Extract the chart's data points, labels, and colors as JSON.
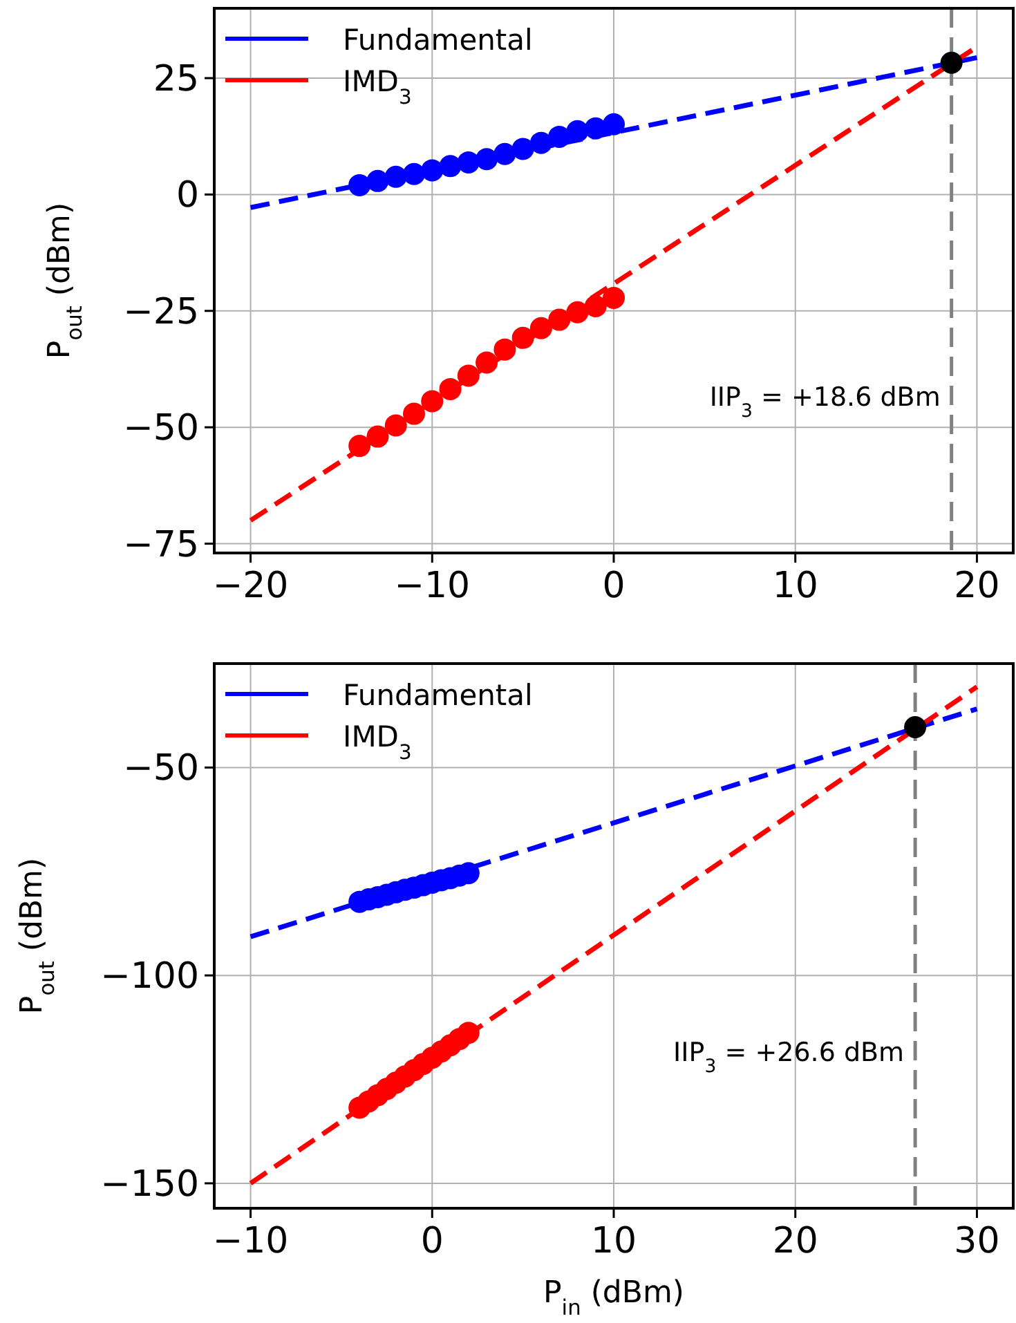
{
  "chart_data": [
    {
      "type": "line",
      "ylabel": "P$_{out}$ (dBm)",
      "xlim": [
        -22,
        22
      ],
      "ylim": [
        -77,
        40
      ],
      "xticks": [
        -20,
        -10,
        0,
        10,
        20
      ],
      "yticks": [
        -75,
        -50,
        -25,
        0,
        25
      ],
      "grid": true,
      "legend": "top left",
      "annotations": [
        "IIP$_{3}$ = +18.6 dBm"
      ],
      "ref_lines": [
        {
          "axis": "x",
          "value": 18.6,
          "color": "#808080",
          "line_style": "dashed"
        }
      ],
      "series": [
        {
          "name": "Fundamental",
          "type": "line",
          "color": "#0000ff",
          "line_style": "dashed",
          "marker": "none",
          "x": [
            -20,
            20
          ],
          "values": [
            -2.8,
            29.4
          ]
        },
        {
          "type": "scatter",
          "color": "#0000ff",
          "marker": "circle",
          "x": [
            -14,
            -13,
            -12,
            -11,
            -10,
            -9,
            -8,
            -7,
            -6,
            -5,
            -4,
            -3,
            -2,
            -1,
            0
          ],
          "values": [
            2.0,
            2.9,
            3.8,
            4.4,
            5.2,
            6.1,
            6.9,
            7.6,
            8.7,
            9.8,
            11.1,
            12.4,
            13.6,
            14.2,
            15.1
          ]
        },
        {
          "name": "IMD$_{3}$",
          "type": "line",
          "color": "#ff0000",
          "line_style": "dashed",
          "marker": "none",
          "x": [
            -20,
            20
          ],
          "values": [
            -70,
            31.7
          ]
        },
        {
          "type": "scatter",
          "color": "#ff0000",
          "marker": "circle",
          "x": [
            -14,
            -13,
            -12,
            -11,
            -10,
            -9,
            -8,
            -7,
            -6,
            -5,
            -4,
            -3,
            -2,
            -1,
            0
          ],
          "values": [
            -54,
            -52,
            -49.6,
            -47.1,
            -44.4,
            -41.8,
            -38.9,
            -36.1,
            -33.3,
            -30.8,
            -28.7,
            -26.9,
            -25.3,
            -24,
            -22.2
          ]
        },
        {
          "type": "scatter",
          "color": "#000000",
          "marker": "circle",
          "x": [
            18.6
          ],
          "values": [
            28.3
          ]
        }
      ]
    },
    {
      "type": "line",
      "xlabel": "P$_{in}$ (dBm)",
      "ylabel": "P$_{out}$ (dBm)",
      "xlim": [
        -12,
        32
      ],
      "ylim": [
        -156,
        -25
      ],
      "xticks": [
        -10,
        0,
        10,
        20,
        30
      ],
      "yticks": [
        -150,
        -100,
        -50
      ],
      "grid": true,
      "legend": "top left",
      "annotations": [
        "IIP$_{3}$ = +26.6 dBm"
      ],
      "ref_lines": [
        {
          "axis": "x",
          "value": 26.6,
          "color": "#808080",
          "line_style": "dashed"
        }
      ],
      "series": [
        {
          "name": "Fundamental",
          "type": "line",
          "color": "#0000ff",
          "line_style": "dashed",
          "marker": "none",
          "x": [
            -10,
            30
          ],
          "values": [
            -90.7,
            -35.9
          ]
        },
        {
          "type": "scatter",
          "color": "#0000ff",
          "marker": "circle",
          "x": [
            -4,
            -3.5,
            -3,
            -2.5,
            -2,
            -1.5,
            -1,
            -0.5,
            0,
            0.5,
            1,
            1.5,
            2
          ],
          "values": [
            -82.3,
            -81.7,
            -81.2,
            -80.6,
            -80.0,
            -79.4,
            -78.9,
            -78.3,
            -77.7,
            -77.1,
            -76.6,
            -76.0,
            -75.4
          ]
        },
        {
          "name": "IMD$_{3}$",
          "type": "line",
          "color": "#ff0000",
          "line_style": "dashed",
          "marker": "none",
          "x": [
            -10,
            30
          ],
          "values": [
            -150,
            -30.6
          ]
        },
        {
          "type": "scatter",
          "color": "#ff0000",
          "marker": "circle",
          "x": [
            -4,
            -3.5,
            -3,
            -2.5,
            -2,
            -1.5,
            -1,
            -0.5,
            0,
            0.5,
            1,
            1.5,
            2
          ],
          "values": [
            -131.8,
            -130.3,
            -128.8,
            -127.3,
            -125.8,
            -124.3,
            -122.8,
            -121.3,
            -119.8,
            -118.3,
            -116.8,
            -115.3,
            -113.8
          ]
        },
        {
          "type": "scatter",
          "color": "#000000",
          "marker": "circle",
          "x": [
            26.6
          ],
          "values": [
            -40.3
          ]
        }
      ]
    }
  ]
}
